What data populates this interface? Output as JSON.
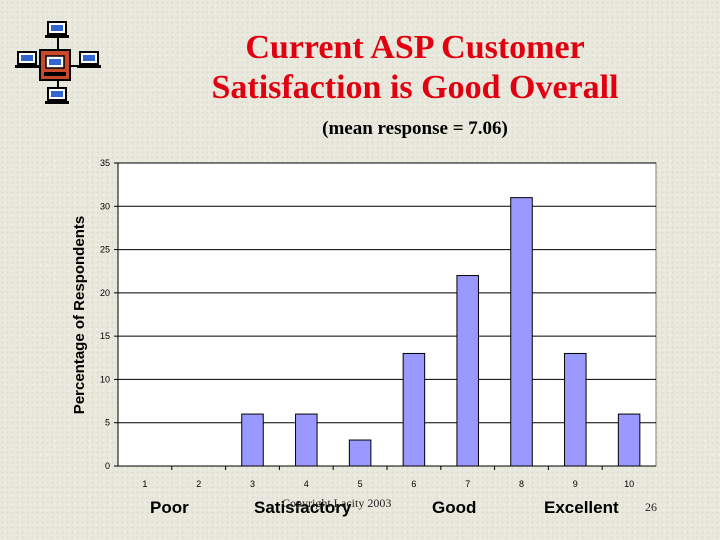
{
  "slide": {
    "title_lines": [
      "Current ASP Customer",
      "Satisfaction is Good Overall"
    ],
    "subtitle": "(mean response = 7.06)",
    "footer": "Copyright Lacity 2003",
    "page_number": "26",
    "logo_icon": "network-computers-icon"
  },
  "chart_data": {
    "type": "bar",
    "categories": [
      "1",
      "2",
      "3",
      "4",
      "5",
      "6",
      "7",
      "8",
      "9",
      "10"
    ],
    "values": [
      0,
      0,
      6,
      6,
      3,
      13,
      22,
      31,
      13,
      6
    ],
    "ylabel": "Percentage of Respondents",
    "ylim": [
      0,
      35
    ],
    "yticks": [
      0,
      5,
      10,
      15,
      20,
      25,
      30,
      35
    ],
    "grid": true,
    "bar_color": "#9999ff",
    "rating_labels": [
      "Poor",
      "Satisfactory",
      "Good",
      "Excellent"
    ]
  }
}
